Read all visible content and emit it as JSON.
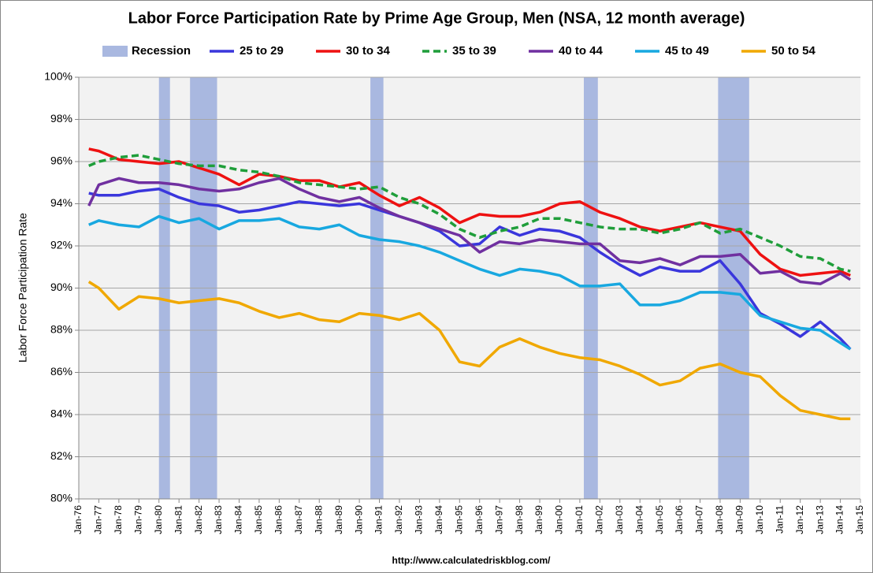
{
  "chart_data": {
    "type": "line",
    "title": "Labor Force Participation Rate by Prime Age Group, Men (NSA, 12 month average)",
    "ylabel": "Labor Force Participation Rate",
    "source": "http://www.calculatedriskblog.com/",
    "grid": true,
    "legend": "top",
    "recessions": {
      "name": "Recession",
      "color": "#a9b8e0",
      "periods": [
        [
          1980.0,
          1980.55
        ],
        [
          1981.55,
          1982.9
        ],
        [
          1990.55,
          1991.2
        ],
        [
          2001.2,
          2001.9
        ],
        [
          2007.9,
          2009.45
        ]
      ]
    },
    "x": [
      1976.5,
      1977,
      1978,
      1979,
      1980,
      1981,
      1982,
      1983,
      1984,
      1985,
      1986,
      1987,
      1988,
      1989,
      1990,
      1991,
      1992,
      1993,
      1994,
      1995,
      1996,
      1997,
      1998,
      1999,
      2000,
      2001,
      2002,
      2003,
      2004,
      2005,
      2006,
      2007,
      2008,
      2009,
      2010,
      2011,
      2012,
      2013,
      2014,
      2014.5
    ],
    "series": [
      {
        "name": "25 to 29",
        "color": "#3a36dc",
        "values": [
          94.5,
          94.4,
          94.4,
          94.6,
          94.7,
          94.3,
          94.0,
          93.9,
          93.6,
          93.7,
          93.9,
          94.1,
          94.0,
          93.9,
          94.0,
          93.7,
          93.4,
          93.1,
          92.7,
          92.0,
          92.1,
          92.9,
          92.5,
          92.8,
          92.7,
          92.4,
          91.7,
          91.1,
          90.6,
          91.0,
          90.8,
          90.8,
          91.3,
          90.2,
          88.8,
          88.3,
          87.7,
          88.4,
          87.6,
          87.1
        ]
      },
      {
        "name": "30 to 34",
        "color": "#ee1111",
        "values": [
          96.6,
          96.5,
          96.1,
          96.0,
          95.9,
          96.0,
          95.7,
          95.4,
          94.9,
          95.4,
          95.3,
          95.1,
          95.1,
          94.8,
          95.0,
          94.4,
          93.9,
          94.3,
          93.8,
          93.1,
          93.5,
          93.4,
          93.4,
          93.6,
          94.0,
          94.1,
          93.6,
          93.3,
          92.9,
          92.7,
          92.9,
          93.1,
          92.9,
          92.7,
          91.6,
          90.9,
          90.6,
          90.7,
          90.8,
          90.6
        ]
      },
      {
        "name": "35 to 39",
        "color": "#1f9e3a",
        "dashed": true,
        "values": [
          95.8,
          96.0,
          96.2,
          96.3,
          96.1,
          95.9,
          95.8,
          95.8,
          95.6,
          95.5,
          95.3,
          95.0,
          94.9,
          94.8,
          94.7,
          94.8,
          94.3,
          94.0,
          93.5,
          92.8,
          92.4,
          92.7,
          92.9,
          93.3,
          93.3,
          93.1,
          92.9,
          92.8,
          92.8,
          92.6,
          92.8,
          93.1,
          92.6,
          92.8,
          92.4,
          92.0,
          91.5,
          91.4,
          90.9,
          90.8
        ]
      },
      {
        "name": "40 to 44",
        "color": "#7030a0",
        "values": [
          93.9,
          94.9,
          95.2,
          95.0,
          95.0,
          94.9,
          94.7,
          94.6,
          94.7,
          95.0,
          95.2,
          94.7,
          94.3,
          94.1,
          94.3,
          93.8,
          93.4,
          93.1,
          92.8,
          92.5,
          91.7,
          92.2,
          92.1,
          92.3,
          92.2,
          92.1,
          92.1,
          91.3,
          91.2,
          91.4,
          91.1,
          91.5,
          91.5,
          91.6,
          90.7,
          90.8,
          90.3,
          90.2,
          90.7,
          90.4
        ]
      },
      {
        "name": "45 to 49",
        "color": "#18a8e0",
        "values": [
          93.0,
          93.2,
          93.0,
          92.9,
          93.4,
          93.1,
          93.3,
          92.8,
          93.2,
          93.2,
          93.3,
          92.9,
          92.8,
          93.0,
          92.5,
          92.3,
          92.2,
          92.0,
          91.7,
          91.3,
          90.9,
          90.6,
          90.9,
          90.8,
          90.6,
          90.1,
          90.1,
          90.2,
          89.2,
          89.2,
          89.4,
          89.8,
          89.8,
          89.7,
          88.7,
          88.4,
          88.1,
          88.0,
          87.4,
          87.1
        ]
      },
      {
        "name": "50 to 54",
        "color": "#f0a800",
        "values": [
          90.3,
          90.0,
          89.0,
          89.6,
          89.5,
          89.3,
          89.4,
          89.5,
          89.3,
          88.9,
          88.6,
          88.8,
          88.5,
          88.4,
          88.8,
          88.7,
          88.5,
          88.8,
          88.0,
          86.5,
          86.3,
          87.2,
          87.6,
          87.2,
          86.9,
          86.7,
          86.6,
          86.3,
          85.9,
          85.4,
          85.6,
          86.2,
          86.4,
          86.0,
          85.8,
          84.9,
          84.2,
          84.0,
          83.8,
          83.8
        ]
      }
    ],
    "ylim": [
      80,
      100
    ],
    "yticks": [
      {
        "value": 80,
        "label": "80%"
      },
      {
        "value": 82,
        "label": "82%"
      },
      {
        "value": 84,
        "label": "84%"
      },
      {
        "value": 86,
        "label": "86%"
      },
      {
        "value": 88,
        "label": "88%"
      },
      {
        "value": 90,
        "label": "90%"
      },
      {
        "value": 92,
        "label": "92%"
      },
      {
        "value": 94,
        "label": "94%"
      },
      {
        "value": 96,
        "label": "96%"
      },
      {
        "value": 98,
        "label": "98%"
      },
      {
        "value": 100,
        "label": "100%"
      }
    ],
    "xlim": [
      1976,
      2015
    ],
    "xticks": [
      {
        "value": 1976,
        "label": "Jan-76"
      },
      {
        "value": 1977,
        "label": "Jan-77"
      },
      {
        "value": 1978,
        "label": "Jan-78"
      },
      {
        "value": 1979,
        "label": "Jan-79"
      },
      {
        "value": 1980,
        "label": "Jan-80"
      },
      {
        "value": 1981,
        "label": "Jan-81"
      },
      {
        "value": 1982,
        "label": "Jan-82"
      },
      {
        "value": 1983,
        "label": "Jan-83"
      },
      {
        "value": 1984,
        "label": "Jan-84"
      },
      {
        "value": 1985,
        "label": "Jan-85"
      },
      {
        "value": 1986,
        "label": "Jan-86"
      },
      {
        "value": 1987,
        "label": "Jan-87"
      },
      {
        "value": 1988,
        "label": "Jan-88"
      },
      {
        "value": 1989,
        "label": "Jan-89"
      },
      {
        "value": 1990,
        "label": "Jan-90"
      },
      {
        "value": 1991,
        "label": "Jan-91"
      },
      {
        "value": 1992,
        "label": "Jan-92"
      },
      {
        "value": 1993,
        "label": "Jan-93"
      },
      {
        "value": 1994,
        "label": "Jan-94"
      },
      {
        "value": 1995,
        "label": "Jan-95"
      },
      {
        "value": 1996,
        "label": "Jan-96"
      },
      {
        "value": 1997,
        "label": "Jan-97"
      },
      {
        "value": 1998,
        "label": "Jan-98"
      },
      {
        "value": 1999,
        "label": "Jan-99"
      },
      {
        "value": 2000,
        "label": "Jan-00"
      },
      {
        "value": 2001,
        "label": "Jan-01"
      },
      {
        "value": 2002,
        "label": "Jan-02"
      },
      {
        "value": 2003,
        "label": "Jan-03"
      },
      {
        "value": 2004,
        "label": "Jan-04"
      },
      {
        "value": 2005,
        "label": "Jan-05"
      },
      {
        "value": 2006,
        "label": "Jan-06"
      },
      {
        "value": 2007,
        "label": "Jan-07"
      },
      {
        "value": 2008,
        "label": "Jan-08"
      },
      {
        "value": 2009,
        "label": "Jan-09"
      },
      {
        "value": 2010,
        "label": "Jan-10"
      },
      {
        "value": 2011,
        "label": "Jan-11"
      },
      {
        "value": 2012,
        "label": "Jan-12"
      },
      {
        "value": 2013,
        "label": "Jan-13"
      },
      {
        "value": 2014,
        "label": "Jan-14"
      },
      {
        "value": 2015,
        "label": "Jan-15"
      }
    ]
  }
}
